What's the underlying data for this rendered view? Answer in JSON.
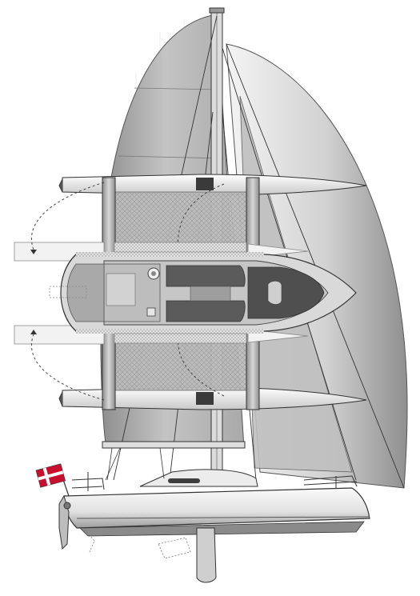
{
  "figure": {
    "subject": "trimaran-sail-and-deck-plan",
    "views": [
      "side-elevation",
      "plan-view"
    ],
    "flag": "danish-flag",
    "colors": {
      "background": "#ffffff",
      "sail_light": "#e6e6e6",
      "sail_dark": "#9a9a9a",
      "hull_light": "#f2f2f2",
      "hull_mid": "#c9c9c9",
      "hull_dark": "#6e6e6e",
      "outline": "#333333",
      "net": "#b5b5b5",
      "flag_red": "#c8102e"
    }
  }
}
